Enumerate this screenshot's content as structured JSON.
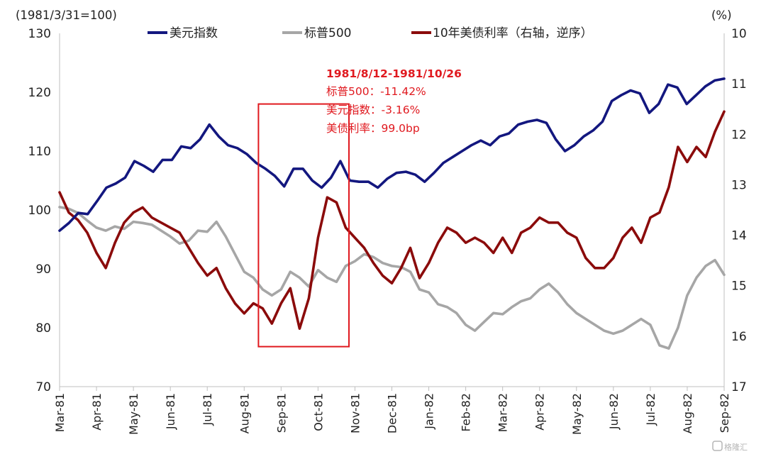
{
  "chart_data": {
    "type": "line",
    "left_unit": "(1981/3/31=100)",
    "right_unit": "(%)",
    "y_left": {
      "ticks": [
        70,
        80,
        90,
        100,
        110,
        120,
        130
      ],
      "ylim": [
        70,
        130
      ]
    },
    "y_right": {
      "ticks": [
        10,
        11,
        12,
        13,
        14,
        15,
        16,
        17
      ],
      "ylim": [
        10,
        17
      ],
      "inverted": true
    },
    "x_labels": [
      "Mar-81",
      "Apr-81",
      "May-81",
      "Jun-81",
      "Jul-81",
      "Aug-81",
      "Sep-81",
      "Oct-81",
      "Nov-81",
      "Dec-81",
      "Jan-82",
      "Feb-82",
      "Mar-82",
      "Apr-82",
      "May-82",
      "Jun-82",
      "Jul-82",
      "Aug-82",
      "Sep-82"
    ],
    "grid": false,
    "legend_position": "top",
    "series": [
      {
        "name": "美元指数",
        "axis": "left",
        "color": "#13177f",
        "values": [
          96.5,
          97.8,
          99.5,
          99.3,
          101.5,
          103.8,
          104.5,
          105.5,
          108.3,
          107.5,
          106.5,
          108.5,
          108.5,
          110.8,
          110.5,
          112.0,
          114.5,
          112.5,
          111.0,
          110.5,
          109.5,
          108.0,
          107.0,
          105.8,
          104.0,
          107.0,
          107.0,
          105.0,
          103.8,
          105.5,
          108.3,
          105.0,
          104.8,
          104.8,
          103.8,
          105.3,
          106.3,
          106.5,
          106.0,
          104.8,
          106.3,
          108.0,
          109.0,
          110.0,
          111.0,
          111.8,
          111.0,
          112.5,
          113.0,
          114.5,
          115.0,
          115.3,
          114.8,
          112.0,
          110.0,
          111.0,
          112.5,
          113.5,
          115.0,
          118.5,
          119.5,
          120.3,
          119.8,
          116.5,
          118.0,
          121.3,
          120.8,
          118.0,
          119.5,
          121.0,
          122.0,
          122.3
        ]
      },
      {
        "name": "标普500",
        "axis": "left",
        "color": "#a6a6a6",
        "values": [
          100.5,
          100.2,
          99.5,
          98.2,
          97.0,
          96.5,
          97.2,
          96.8,
          98.0,
          97.8,
          97.5,
          96.5,
          95.5,
          94.3,
          94.8,
          96.5,
          96.3,
          98.0,
          95.5,
          92.5,
          89.5,
          88.5,
          86.5,
          85.5,
          86.5,
          89.5,
          88.5,
          87.0,
          89.8,
          88.5,
          87.8,
          90.5,
          91.3,
          92.5,
          92.0,
          91.0,
          90.5,
          90.3,
          89.5,
          86.5,
          86.0,
          84.0,
          83.5,
          82.5,
          80.5,
          79.5,
          81.0,
          82.5,
          82.3,
          83.5,
          84.5,
          85.0,
          86.5,
          87.5,
          86.0,
          84.0,
          82.5,
          81.5,
          80.5,
          79.5,
          79.0,
          79.5,
          80.5,
          81.5,
          80.5,
          77.0,
          76.5,
          80.0,
          85.5,
          88.5,
          90.5,
          91.5,
          89.0
        ]
      },
      {
        "name": "10年美债利率（右轴，逆序）",
        "axis": "right",
        "color": "#8b0b0b",
        "values": [
          13.15,
          13.55,
          13.7,
          13.95,
          14.35,
          14.65,
          14.15,
          13.75,
          13.55,
          13.45,
          13.65,
          13.75,
          13.85,
          13.95,
          14.25,
          14.55,
          14.8,
          14.65,
          15.05,
          15.35,
          15.55,
          15.35,
          15.45,
          15.75,
          15.35,
          15.05,
          15.85,
          15.25,
          14.05,
          13.25,
          13.35,
          13.85,
          14.05,
          14.25,
          14.55,
          14.8,
          14.95,
          14.65,
          14.25,
          14.85,
          14.55,
          14.15,
          13.85,
          13.95,
          14.15,
          14.05,
          14.15,
          14.35,
          14.05,
          14.35,
          13.95,
          13.85,
          13.65,
          13.75,
          13.75,
          13.95,
          14.05,
          14.45,
          14.65,
          14.65,
          14.45,
          14.05,
          13.85,
          14.15,
          13.65,
          13.55,
          13.05,
          12.25,
          12.55,
          12.25,
          12.45,
          11.95,
          11.55
        ]
      }
    ],
    "highlight_box": {
      "x_from": "1981/8/12",
      "x_to": "1981/10/26",
      "color": "#e0191f"
    },
    "annotation": {
      "title": "1981/8/12-1981/10/26",
      "lines": [
        "标普500：-11.42%",
        "美元指数：-3.16%",
        "美债利率：99.0bp"
      ]
    }
  },
  "watermark": "格隆汇"
}
